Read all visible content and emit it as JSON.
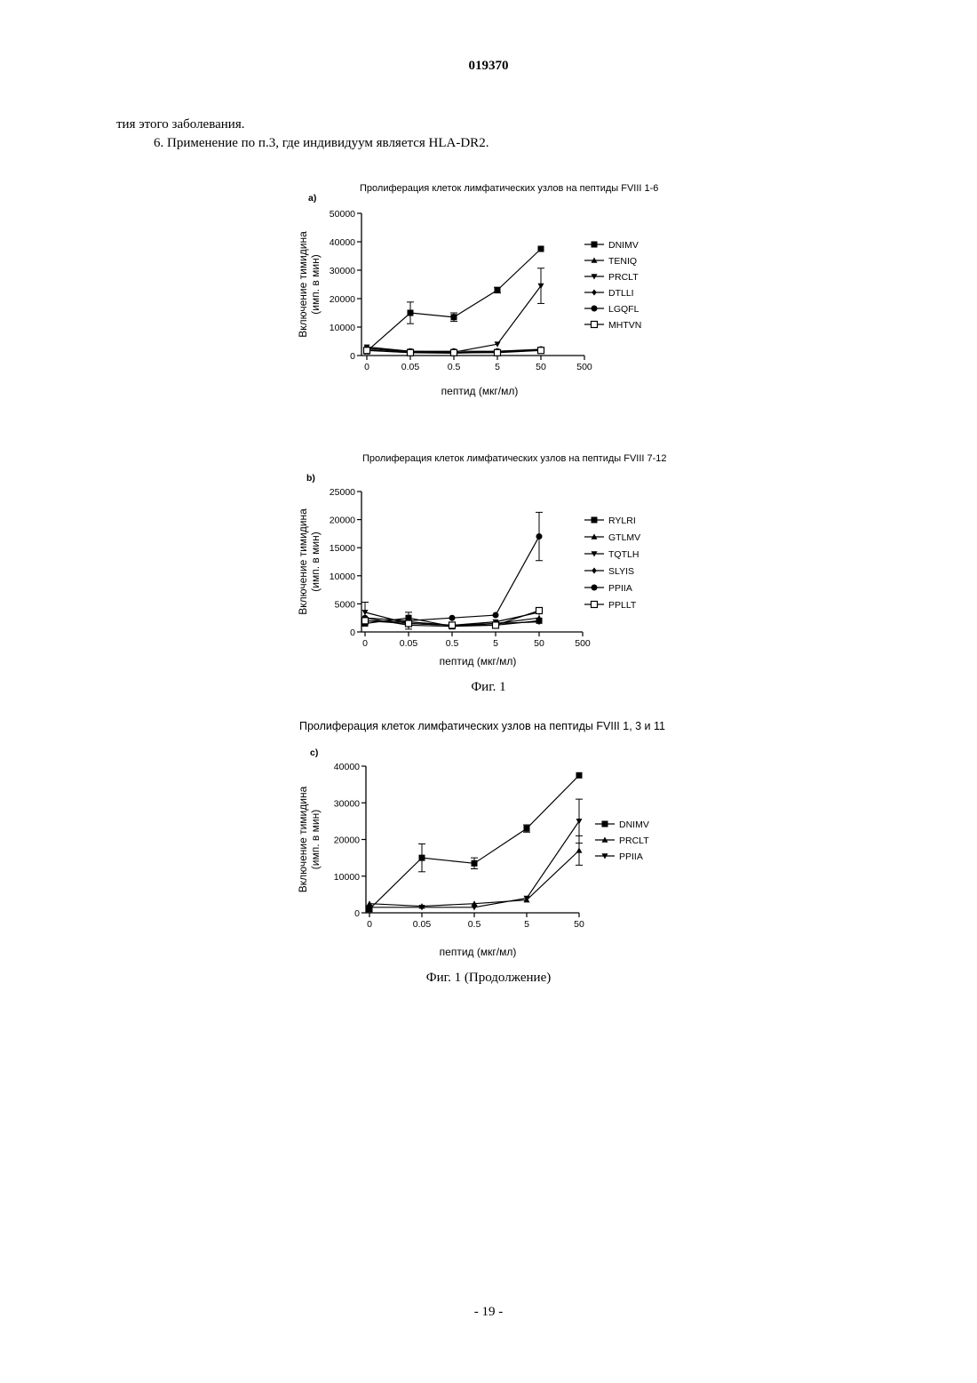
{
  "page": {
    "header": "019370",
    "line1": "тия этого заболевания.",
    "line2": "6. Применение по п.3, где индивидуум является HLA-DR2.",
    "caption1": "Фиг. 1",
    "caption2": "Фиг. 1 (Продолжение)",
    "footer": "- 19 -"
  },
  "chart_data": [
    {
      "type": "line",
      "panel": "a)",
      "title": "Пролиферация клеток лимфатических узлов на пептиды FVIII 1-6",
      "xlabel": "пептид (мкг/мл)",
      "ylabel": "Включение тимидина (имп. в мин)",
      "x": [
        "0",
        "0.05",
        "0.5",
        "5",
        "50"
      ],
      "x_ticks": [
        "0",
        "0.05",
        "0.5",
        "5",
        "50",
        "500"
      ],
      "y_ticks": [
        "0",
        "10000",
        "20000",
        "30000",
        "40000",
        "50000"
      ],
      "ylim": [
        0,
        50000
      ],
      "legend_position": "right",
      "series": [
        {
          "name": "DNIMV",
          "marker": "square",
          "values": [
            1500,
            15000,
            13500,
            23000,
            37500
          ],
          "errors": [
            0,
            3800,
            1500,
            1000,
            0
          ]
        },
        {
          "name": "TENIQ",
          "marker": "triangle-up",
          "values": [
            2500,
            1200,
            1000,
            1500,
            2000
          ],
          "errors": [
            0,
            0,
            0,
            0,
            0
          ]
        },
        {
          "name": "PRCLT",
          "marker": "triangle-down",
          "values": [
            3000,
            1500,
            1200,
            4000,
            24500
          ],
          "errors": [
            0,
            0,
            0,
            0,
            6200
          ]
        },
        {
          "name": "DTLLI",
          "marker": "diamond",
          "values": [
            2000,
            1000,
            800,
            1200,
            2000
          ],
          "errors": [
            0,
            0,
            0,
            0,
            0
          ]
        },
        {
          "name": "LGQFL",
          "marker": "circle",
          "values": [
            2500,
            1500,
            1500,
            1500,
            2200
          ],
          "errors": [
            0,
            0,
            0,
            0,
            0
          ]
        },
        {
          "name": "MHTVN",
          "marker": "square-open",
          "values": [
            1800,
            1000,
            1000,
            1000,
            1800
          ],
          "errors": [
            0,
            0,
            0,
            0,
            0
          ]
        }
      ]
    },
    {
      "type": "line",
      "panel": "b)",
      "title": "Пролиферация клеток лимфатических узлов на пептиды FVIII 7-12",
      "xlabel": "пептид (мкг/мл)",
      "ylabel": "Включение тимидина (имп. в мин)",
      "x": [
        "0",
        "0.05",
        "0.5",
        "5",
        "50"
      ],
      "x_ticks": [
        "0",
        "0.05",
        "0.5",
        "5",
        "50",
        "500"
      ],
      "y_ticks": [
        "0",
        "5000",
        "10000",
        "15000",
        "20000",
        "25000"
      ],
      "ylim": [
        0,
        25000
      ],
      "legend_position": "right",
      "series": [
        {
          "name": "RYLRI",
          "marker": "square",
          "values": [
            1500,
            2500,
            1000,
            1200,
            2000
          ],
          "errors": [
            0,
            0,
            0,
            0,
            0
          ]
        },
        {
          "name": "GTLMV",
          "marker": "triangle-up",
          "values": [
            2000,
            1800,
            1200,
            1500,
            2500
          ],
          "errors": [
            0,
            0,
            0,
            0,
            0
          ]
        },
        {
          "name": "TQTLH",
          "marker": "triangle-down",
          "values": [
            3500,
            1500,
            1200,
            1800,
            3500
          ],
          "errors": [
            1800,
            0,
            0,
            0,
            0
          ]
        },
        {
          "name": "SLYIS",
          "marker": "diamond",
          "values": [
            2500,
            1200,
            1000,
            1500,
            1800
          ],
          "errors": [
            0,
            0,
            0,
            0,
            0
          ]
        },
        {
          "name": "PPIIA",
          "marker": "circle",
          "values": [
            2500,
            2000,
            2500,
            3000,
            17000
          ],
          "errors": [
            0,
            1500,
            0,
            0,
            4300
          ]
        },
        {
          "name": "PPLLT",
          "marker": "square-open",
          "values": [
            2000,
            1500,
            1200,
            1200,
            3800
          ],
          "errors": [
            0,
            0,
            0,
            0,
            0
          ]
        }
      ]
    },
    {
      "type": "line",
      "panel": "c)",
      "title": "Пролиферация клеток лимфатических узлов на пептиды FVIII 1, 3 и 11",
      "xlabel": "пептид (мкг/мл)",
      "ylabel": "Включение тимидина (имп. в мин)",
      "x": [
        "0",
        "0.05",
        "0.5",
        "5",
        "50"
      ],
      "x_ticks": [
        "0",
        "0.05",
        "0.5",
        "5",
        "50"
      ],
      "y_ticks": [
        "0",
        "10000",
        "20000",
        "30000",
        "40000"
      ],
      "ylim": [
        0,
        40000
      ],
      "legend_position": "right",
      "series": [
        {
          "name": "DNIMV",
          "marker": "square",
          "values": [
            1000,
            15000,
            13500,
            23000,
            37500
          ],
          "errors": [
            0,
            3800,
            1500,
            1000,
            0
          ]
        },
        {
          "name": "PRCLT",
          "marker": "triangle-up",
          "values": [
            2500,
            1800,
            2500,
            3500,
            17000
          ],
          "errors": [
            0,
            0,
            0,
            0,
            4000
          ]
        },
        {
          "name": "PPIIA",
          "marker": "triangle-down",
          "values": [
            1500,
            1500,
            1500,
            4000,
            25000
          ],
          "errors": [
            0,
            0,
            0,
            0,
            6000
          ]
        }
      ]
    }
  ]
}
